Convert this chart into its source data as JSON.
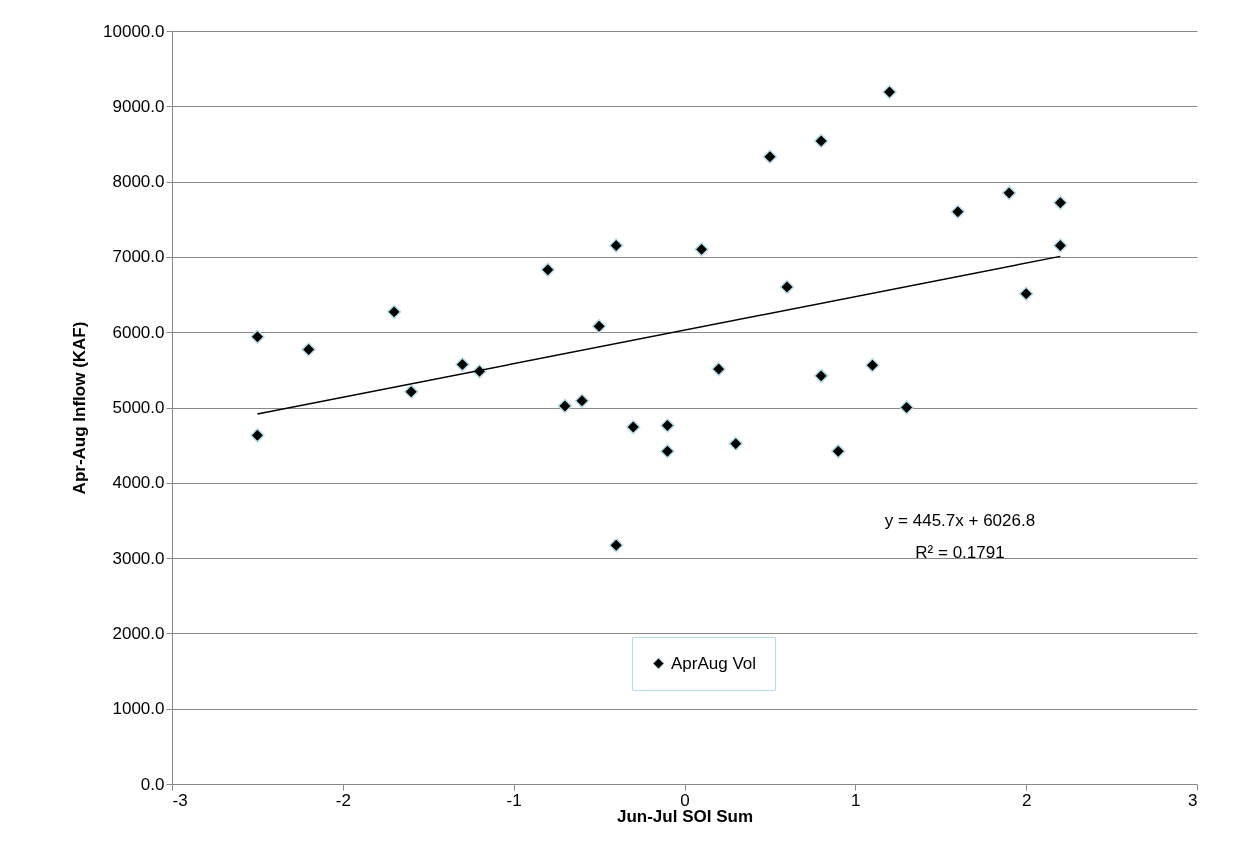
{
  "chart_data": {
    "type": "scatter",
    "xlabel": "Jun-Jul SOI Sum",
    "ylabel": "Apr-Aug Inflow (KAF)",
    "annotations": [
      "y = 445.7x + 6026.8",
      "R² = 0.1791"
    ],
    "series": [
      {
        "name": "AprAug Vol",
        "color": "#000000",
        "marker": "diamond",
        "x": [
          -2.5,
          -2.5,
          -2.2,
          -1.7,
          -1.6,
          -1.3,
          -1.2,
          -0.8,
          -0.7,
          -0.6,
          -0.5,
          -0.4,
          -0.4,
          -0.3,
          -0.1,
          -0.1,
          0.1,
          0.2,
          0.3,
          0.5,
          0.6,
          0.8,
          0.8,
          0.9,
          1.1,
          1.2,
          1.3,
          1.6,
          1.9,
          2.0,
          2.2,
          2.2
        ],
        "values": [
          5940,
          4630,
          5770,
          6270,
          5210,
          5570,
          5480,
          6830,
          5020,
          5090,
          6080,
          7150,
          3170,
          4740,
          4760,
          4420,
          7100,
          5510,
          4520,
          8330,
          6600,
          8540,
          5420,
          4420,
          5560,
          9190,
          5000,
          7600,
          7850,
          6510,
          7720,
          7150
        ]
      },
      {
        "type": "line",
        "color": "#000000",
        "x": [
          -2.5,
          2.2
        ],
        "values": [
          4913,
          7007
        ]
      }
    ],
    "xlim": [
      -3,
      3
    ],
    "xticks": [
      -3,
      -2,
      -1,
      0,
      1,
      2,
      3
    ],
    "ylim": [
      0,
      10000
    ],
    "yticks": [
      {
        "value": 0,
        "label": "0.0"
      },
      {
        "value": 1000,
        "label": "1000.0"
      },
      {
        "value": 2000,
        "label": "2000.0"
      },
      {
        "value": 3000,
        "label": "3000.0"
      },
      {
        "value": 4000,
        "label": "4000.0"
      },
      {
        "value": 5000,
        "label": "5000.0"
      },
      {
        "value": 6000,
        "label": "6000.0"
      },
      {
        "value": 7000,
        "label": "7000.0"
      },
      {
        "value": 8000,
        "label": "8000.0"
      },
      {
        "value": 9000,
        "label": "9000.0"
      },
      {
        "value": 10000,
        "label": "10000.0"
      }
    ],
    "grid": "y",
    "legend": "bottom right"
  }
}
